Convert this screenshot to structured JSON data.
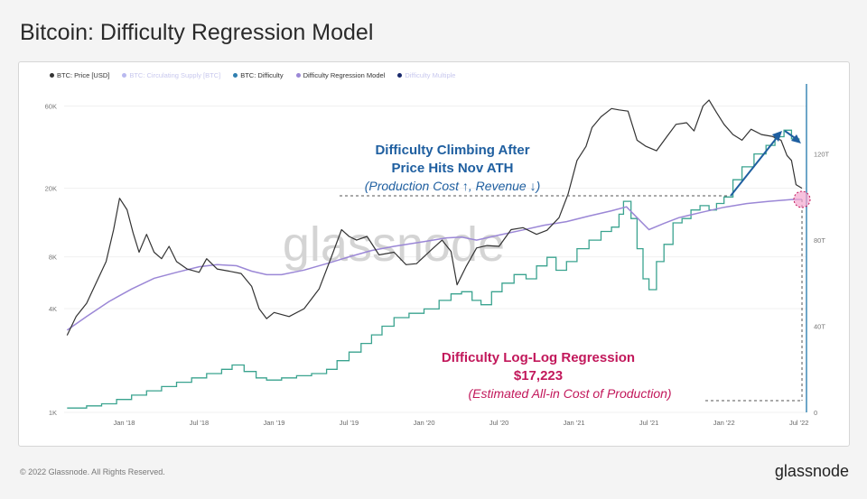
{
  "page": {
    "title": "Bitcoin: Difficulty Regression Model"
  },
  "legend": [
    {
      "label": "BTC: Price [USD]",
      "color": "#333333",
      "faded": false
    },
    {
      "label": "BTC: Circulating Supply [BTC]",
      "color": "#b9b9ef",
      "faded": true
    },
    {
      "label": "BTC: Difficulty",
      "color": "#2f7fb0",
      "faded": false
    },
    {
      "label": "Difficulty Regression Model",
      "color": "#9b87d6",
      "faded": false
    },
    {
      "label": "Difficulty Multiple",
      "color": "#1a2a6c",
      "faded": true
    }
  ],
  "annotations": {
    "top_line1": "Difficulty Climbing After",
    "top_line2": "Price Hits Nov ATH",
    "top_line3": "(Production Cost ↑, Revenue ↓)",
    "bottom_line1": "Difficulty Log-Log Regression",
    "bottom_line2": "$17,223",
    "bottom_line3": "(Estimated All-in Cost of Production)"
  },
  "watermark": "glassnode",
  "footer": {
    "copyright": "© 2022 Glassnode. All Rights Reserved.",
    "logo": "glassnode"
  },
  "colors": {
    "price": "#333333",
    "difficulty": "#3aa38f",
    "model": "#9b87d6",
    "axis_right": "#2f7fb0",
    "annotation_blue": "#1f5fa0",
    "annotation_pink": "#c2185b"
  },
  "chart_data": {
    "type": "line",
    "title": "Bitcoin: Difficulty Regression Model",
    "x_ticks": [
      "Jan '18",
      "Jul '18",
      "Jan '19",
      "Jul '19",
      "Jan '20",
      "Jul '20",
      "Jan '21",
      "Jul '21",
      "Jan '22",
      "Jul '22"
    ],
    "x_tick_pos": [
      2018.0,
      2018.5,
      2019.0,
      2019.5,
      2020.0,
      2020.5,
      2021.0,
      2021.5,
      2022.0,
      2022.5
    ],
    "xlim": [
      2017.6,
      2022.55
    ],
    "y_left": {
      "scale": "log",
      "ylim": [
        1000,
        75000
      ],
      "ticks": [
        1000,
        4000,
        8000,
        20000,
        60000
      ],
      "tick_labels": [
        "1K",
        "4K",
        "8K",
        "20K",
        "60K"
      ]
    },
    "y_right": {
      "scale": "linear",
      "ylim": [
        0,
        150
      ],
      "ticks": [
        0,
        40,
        80,
        120
      ],
      "tick_labels": [
        "0",
        "40T",
        "80T",
        "120T"
      ]
    },
    "series": [
      {
        "name": "BTC: Price [USD]",
        "axis": "left",
        "x": [
          2017.62,
          2017.68,
          2017.75,
          2017.82,
          2017.88,
          2017.93,
          2017.97,
          2018.02,
          2018.06,
          2018.1,
          2018.15,
          2018.2,
          2018.25,
          2018.3,
          2018.35,
          2018.42,
          2018.5,
          2018.55,
          2018.62,
          2018.7,
          2018.78,
          2018.85,
          2018.9,
          2018.95,
          2019.0,
          2019.1,
          2019.2,
          2019.3,
          2019.38,
          2019.45,
          2019.5,
          2019.55,
          2019.62,
          2019.7,
          2019.8,
          2019.88,
          2019.95,
          2020.05,
          2020.12,
          2020.18,
          2020.22,
          2020.28,
          2020.35,
          2020.42,
          2020.5,
          2020.58,
          2020.66,
          2020.75,
          2020.82,
          2020.9,
          2020.96,
          2021.02,
          2021.08,
          2021.12,
          2021.18,
          2021.25,
          2021.3,
          2021.36,
          2021.42,
          2021.48,
          2021.55,
          2021.62,
          2021.68,
          2021.75,
          2021.8,
          2021.86,
          2021.9,
          2021.95,
          2022.0,
          2022.06,
          2022.12,
          2022.18,
          2022.25,
          2022.32,
          2022.38,
          2022.42,
          2022.45,
          2022.48,
          2022.52
        ],
        "values": [
          2800,
          3600,
          4300,
          5800,
          7500,
          11500,
          17500,
          15000,
          11000,
          8500,
          10800,
          8500,
          7800,
          9200,
          7500,
          6800,
          6500,
          7800,
          6800,
          6600,
          6400,
          5400,
          4000,
          3500,
          3800,
          3600,
          4000,
          5200,
          7900,
          11500,
          10500,
          10000,
          10500,
          8200,
          8500,
          7200,
          7300,
          8800,
          10000,
          8600,
          5500,
          7000,
          9000,
          9300,
          9200,
          11500,
          11800,
          10800,
          11400,
          13500,
          18500,
          29000,
          35000,
          45000,
          52000,
          58000,
          57000,
          56000,
          38000,
          35000,
          33000,
          40000,
          47000,
          48000,
          43000,
          60000,
          65000,
          55000,
          47000,
          41000,
          38000,
          44000,
          41000,
          40000,
          38000,
          31000,
          29000,
          21000,
          20000
        ]
      },
      {
        "name": "BTC: Difficulty",
        "axis": "right",
        "x": [
          2017.62,
          2017.75,
          2017.85,
          2017.95,
          2018.05,
          2018.15,
          2018.25,
          2018.35,
          2018.45,
          2018.55,
          2018.65,
          2018.72,
          2018.8,
          2018.88,
          2018.95,
          2019.05,
          2019.15,
          2019.25,
          2019.35,
          2019.42,
          2019.5,
          2019.58,
          2019.65,
          2019.72,
          2019.8,
          2019.9,
          2020.0,
          2020.1,
          2020.18,
          2020.25,
          2020.32,
          2020.38,
          2020.45,
          2020.52,
          2020.6,
          2020.68,
          2020.75,
          2020.82,
          2020.88,
          2020.95,
          2021.02,
          2021.1,
          2021.18,
          2021.25,
          2021.3,
          2021.33,
          2021.38,
          2021.42,
          2021.46,
          2021.5,
          2021.55,
          2021.6,
          2021.66,
          2021.72,
          2021.78,
          2021.84,
          2021.9,
          2021.95,
          2022.0,
          2022.06,
          2022.12,
          2022.2,
          2022.28,
          2022.34,
          2022.4,
          2022.45,
          2022.5
        ],
        "values": [
          2,
          3,
          4,
          6,
          8,
          10,
          12,
          14,
          16,
          18,
          20,
          22,
          19,
          16,
          15,
          16,
          17,
          18,
          20,
          24,
          28,
          32,
          36,
          40,
          44,
          46,
          48,
          52,
          55,
          56,
          52,
          50,
          56,
          60,
          64,
          62,
          68,
          72,
          66,
          70,
          76,
          80,
          84,
          86,
          92,
          98,
          90,
          76,
          62,
          57,
          70,
          78,
          88,
          90,
          94,
          96,
          94,
          97,
          100,
          108,
          114,
          120,
          124,
          128,
          131,
          127,
          126
        ]
      },
      {
        "name": "Difficulty Regression Model",
        "axis": "left",
        "x": [
          2017.62,
          2017.75,
          2017.9,
          2018.05,
          2018.2,
          2018.35,
          2018.5,
          2018.62,
          2018.75,
          2018.85,
          2018.95,
          2019.05,
          2019.2,
          2019.35,
          2019.5,
          2019.65,
          2019.8,
          2020.0,
          2020.15,
          2020.25,
          2020.35,
          2020.5,
          2020.65,
          2020.8,
          2020.95,
          2021.1,
          2021.25,
          2021.35,
          2021.42,
          2021.5,
          2021.6,
          2021.7,
          2021.85,
          2022.0,
          2022.15,
          2022.3,
          2022.45,
          2022.52
        ],
        "values": [
          3000,
          3600,
          4400,
          5200,
          6000,
          6500,
          7000,
          7200,
          7100,
          6600,
          6300,
          6300,
          6700,
          7300,
          8000,
          8700,
          9200,
          9800,
          10300,
          10400,
          10000,
          10700,
          11400,
          12200,
          12800,
          13800,
          14800,
          15600,
          13500,
          11500,
          12500,
          13500,
          14500,
          15500,
          16300,
          16800,
          17200,
          17223
        ]
      }
    ]
  }
}
